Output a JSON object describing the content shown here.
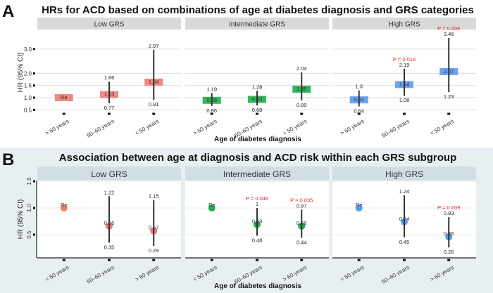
{
  "chart_data": [
    {
      "type": "scatter",
      "panel_letter": "A",
      "title": "HRs for ACD based on combinations of age at diabetes diagnosis and GRS categories",
      "xlabel": "Age of diabetes diagnosis",
      "ylabel": "HR (95% CI)",
      "ylim": [
        0.4,
        3.5
      ],
      "yticks": [
        "0.5",
        "1.0",
        "1.5",
        "2.0",
        "3.0"
      ],
      "grid": true,
      "marker": "rectangle",
      "categories": [
        "> 60 years",
        "50–60 years",
        "< 50 years"
      ],
      "facets": [
        {
          "name": "Low GRS",
          "color": "#f07b76",
          "hr": [
            1.0,
            1.13,
            1.64
          ],
          "hr_labels": [
            "Re",
            "1.13",
            "1.64"
          ],
          "lower": [
            null,
            0.77,
            0.91
          ],
          "upper": [
            null,
            1.66,
            2.97
          ],
          "p": [
            "",
            "",
            ""
          ]
        },
        {
          "name": "Intermediate GRS",
          "color": "#1fae4b",
          "hr": [
            0.89,
            0.93,
            1.35
          ],
          "hr_labels": [
            "0.89",
            "0.93",
            "1.35"
          ],
          "lower": [
            0.66,
            0.68,
            0.89
          ],
          "upper": [
            1.19,
            1.28,
            2.04
          ],
          "p": [
            "",
            "",
            ""
          ]
        },
        {
          "name": "High GRS",
          "color": "#5b9bee",
          "hr": [
            0.91,
            1.54,
            2.07
          ],
          "hr_labels": [
            "0.91",
            "1.54",
            "2.07"
          ],
          "lower": [
            0.64,
            1.08,
            1.23
          ],
          "upper": [
            1.3,
            2.19,
            3.46
          ],
          "p": [
            "",
            "P = 0.016",
            "P = 0.006"
          ]
        }
      ]
    },
    {
      "type": "scatter",
      "panel_letter": "B",
      "title": "Association between age at diagnosis and ACD risk within each GRS subgroup",
      "xlabel": "Age of diabetes diagnosis",
      "ylabel": "HR (95% CI)",
      "ylim": [
        0.07,
        1.51
      ],
      "yticks": [
        "0.5",
        "1.0",
        "1.5"
      ],
      "grid": true,
      "marker": "circle",
      "categories": [
        "< 50 years",
        "50–60 years",
        "> 60 years"
      ],
      "facets": [
        {
          "name": "Low GRS",
          "color": "#f07b76",
          "hr": [
            1.0,
            0.66,
            0.57
          ],
          "hr_labels": [
            "Re",
            "0.66",
            "0.57"
          ],
          "lower": [
            null,
            0.35,
            0.29
          ],
          "upper": [
            null,
            1.22,
            1.15
          ],
          "p": [
            "",
            "",
            ""
          ]
        },
        {
          "name": "Intermediate GRS",
          "color": "#1fae4b",
          "hr": [
            1.0,
            0.69,
            0.66
          ],
          "hr_labels": [
            "Re",
            "0.69",
            "0.66"
          ],
          "lower": [
            null,
            0.48,
            0.44
          ],
          "upper": [
            null,
            1,
            0.97
          ],
          "p": [
            "",
            "P = 0.048",
            "P = 0.035"
          ]
        },
        {
          "name": "High GRS",
          "color": "#5b9bee",
          "hr": [
            1.0,
            0.74,
            0.46
          ],
          "hr_labels": [
            "Re",
            "0.74",
            "0.46"
          ],
          "lower": [
            null,
            0.45,
            0.26
          ],
          "upper": [
            null,
            1.24,
            0.83
          ],
          "p": [
            "",
            "",
            "P = 0.009"
          ]
        }
      ]
    }
  ]
}
